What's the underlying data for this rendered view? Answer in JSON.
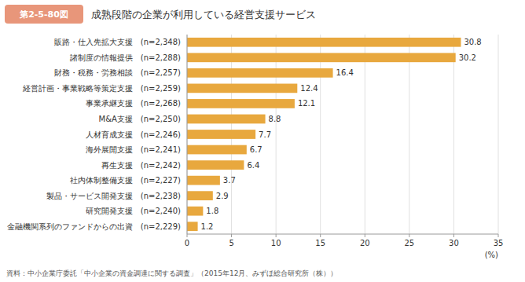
{
  "chart_data": {
    "type": "bar",
    "orientation": "horizontal",
    "title": "成熟段階の企業が利用している経営支援サービス",
    "annotations": [
      "第2-5-80図",
      "資料：中小企業庁委託「中小企業の資金調達に関する調査」（2015年12月、みずほ総合研究所（株））"
    ],
    "xlabel": "(%)",
    "categories": [
      "販路・仕入先拡大支援　(n=2,348)",
      "諸制度の情報提供　(n=2,288)",
      "財務・税務・労務相談　(n=2,257)",
      "経営計画・事業戦略等策定支援　(n=2,259)",
      "事業承継支援　(n=2,268)",
      "M&A支援　(n=2,250)",
      "人材育成支援　(n=2,246)",
      "海外展開支援　(n=2,241)",
      "再生支援　(n=2,242)",
      "社内体制整備支援　(n=2,227)",
      "製品・サービス開発支援　(n=2,238)",
      "研究開発支援　(n=2,240)",
      "金融機関系列のファンドからの出資　(n=2,229)"
    ],
    "values": [
      30.8,
      30.2,
      16.4,
      12.4,
      12.1,
      8.8,
      7.7,
      6.7,
      6.4,
      3.7,
      2.9,
      1.8,
      1.2
    ],
    "color": "#E8A83E",
    "xlim": [
      0,
      35
    ],
    "xticks": [
      0,
      5,
      10,
      15,
      20,
      25,
      30,
      35
    ],
    "grid": true,
    "data_labels": true
  }
}
